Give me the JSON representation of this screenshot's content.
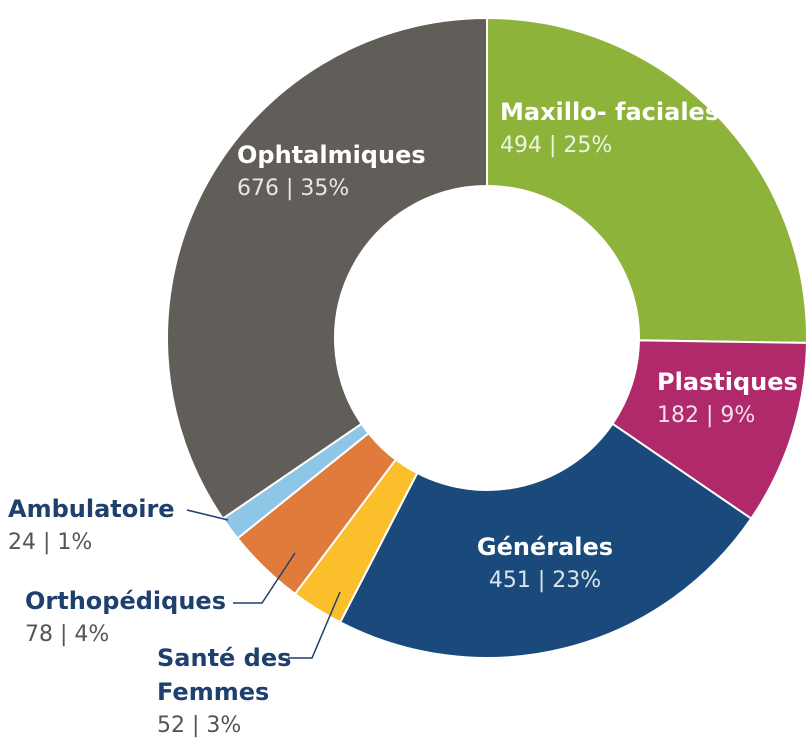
{
  "chart_data": {
    "type": "donut",
    "categories": [
      "Maxillo- faciales",
      "Plastiques",
      "Générales",
      "Santé des Femmes",
      "Orthopédiques",
      "Ambulatoire",
      "Ophtalmiques"
    ],
    "values": [
      494,
      182,
      451,
      52,
      78,
      24,
      676
    ],
    "value_labels": [
      "494 | 25%",
      "182 | 9%",
      "451 | 23%",
      "52 | 3%",
      "78 | 4%",
      "24 | 1%",
      "676 | 35%"
    ],
    "colors": [
      "#8db33a",
      "#b0296a",
      "#1a4a7c",
      "#fbbf2c",
      "#e07b3c",
      "#8ec6e8",
      "#615d59"
    ]
  }
}
